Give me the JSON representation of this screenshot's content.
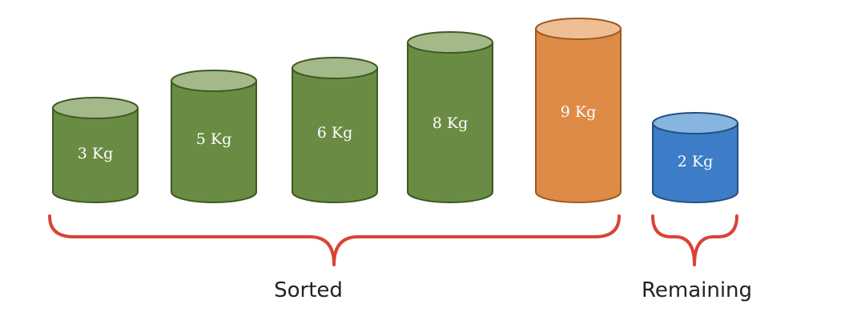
{
  "colors": {
    "sorted_body": "#6a8b43",
    "sorted_top": "#a4b98a",
    "sorted_stroke": "#3d5a22",
    "current_body": "#de8b48",
    "current_top": "#efbe95",
    "current_stroke": "#9c5a22",
    "remaining_body": "#3d7cc6",
    "remaining_top": "#88b4e0",
    "remaining_stroke": "#234e80",
    "brace": "#d94436"
  },
  "weights": [
    {
      "label": "3 Kg",
      "kind": "sorted"
    },
    {
      "label": "5 Kg",
      "kind": "sorted"
    },
    {
      "label": "6 Kg",
      "kind": "sorted"
    },
    {
      "label": "8 Kg",
      "kind": "sorted"
    },
    {
      "label": "9 Kg",
      "kind": "current"
    },
    {
      "label": "2 Kg",
      "kind": "remaining"
    }
  ],
  "groups": {
    "sorted_label": "Sorted",
    "remaining_label": "Remaining"
  }
}
